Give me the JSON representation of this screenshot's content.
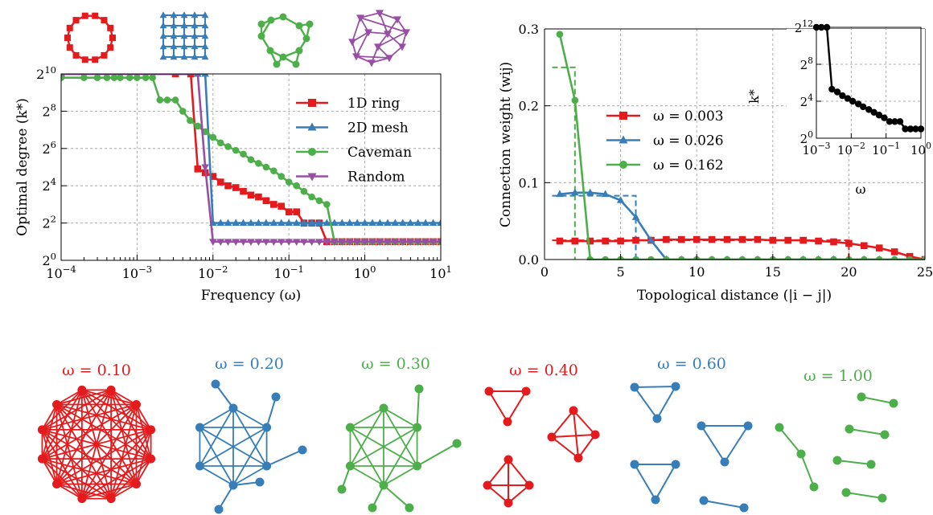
{
  "colors": {
    "red": "#e41a1c",
    "blue": "#377eb8",
    "green": "#4daf4a",
    "purple": "#984ea3",
    "black": "#000000"
  },
  "chart_data": [
    {
      "type": "line",
      "xlabel": "Frequency (ω)",
      "ylabel": "Optimal degree (k*)",
      "xscale": "log",
      "yscale": "log2",
      "xlim": [
        0.0001,
        10
      ],
      "ylim_exp": [
        0,
        10
      ],
      "x_ticks": [
        "10−4",
        "10−3",
        "10−2",
        "10−1",
        "100",
        "101"
      ],
      "y_ticks": [
        "20",
        "22",
        "24",
        "26",
        "28",
        "210"
      ],
      "legend": "upper right",
      "series": [
        {
          "name": "1D ring",
          "color": "red",
          "marker": "square",
          "x": [
            0.0001,
            0.0032,
            0.0051,
            0.0063,
            0.0079,
            0.01,
            0.0126,
            0.0158,
            0.02,
            0.0251,
            0.0316,
            0.0398,
            0.0501,
            0.0631,
            0.0794,
            0.1,
            0.126,
            0.158,
            0.2,
            0.251,
            0.316,
            0.398,
            0.501,
            0.631,
            0.794,
            1,
            1.26,
            1.58,
            2,
            2.51,
            3.16,
            3.98,
            5.01,
            6.31,
            7.94,
            10
          ],
          "y_exp": [
            10,
            10,
            10,
            4.9,
            4.7,
            4.5,
            4.2,
            4.0,
            3.9,
            3.7,
            3.5,
            3.4,
            3.2,
            3.0,
            2.9,
            2.6,
            2.6,
            2.0,
            2.0,
            2.0,
            1.0,
            1.0,
            1.0,
            1.0,
            1.0,
            1.0,
            1.0,
            1.0,
            1.0,
            1.0,
            1.0,
            1.0,
            1.0,
            1.0,
            1.0,
            1.0
          ]
        },
        {
          "name": "2D mesh",
          "color": "blue",
          "marker": "triangle-up",
          "x": [
            0.0001,
            0.0063,
            0.0079,
            0.01,
            0.0126,
            0.0158,
            0.02,
            0.0251,
            0.0316,
            0.0398,
            0.0501,
            0.0631,
            0.0794,
            0.1,
            0.126,
            0.158,
            0.2,
            0.251,
            0.316,
            0.398,
            0.501,
            0.631,
            0.794,
            1,
            1.26,
            1.58,
            2,
            2.51,
            3.16,
            3.98,
            5.01,
            6.31,
            7.94,
            10
          ],
          "y_exp": [
            10,
            10,
            10,
            2,
            2,
            2,
            2,
            2,
            2,
            2,
            2,
            2,
            2,
            2,
            2,
            2,
            2,
            2,
            2,
            2,
            2,
            2,
            2,
            2,
            2,
            2,
            2,
            2,
            2,
            2,
            2,
            2,
            2,
            2
          ]
        },
        {
          "name": "Caveman",
          "color": "green",
          "marker": "circle",
          "x": [
            0.0001,
            0.0002,
            0.0003,
            0.0004,
            0.0005,
            0.0006,
            0.0008,
            0.001,
            0.0013,
            0.0016,
            0.002,
            0.0025,
            0.0032,
            0.004,
            0.005,
            0.0063,
            0.0079,
            0.01,
            0.0126,
            0.0158,
            0.02,
            0.0251,
            0.0316,
            0.0398,
            0.0501,
            0.0631,
            0.0794,
            0.1,
            0.126,
            0.158,
            0.2,
            0.251,
            0.316,
            0.398,
            0.501,
            0.631,
            0.794,
            1,
            1.26,
            1.58,
            2,
            2.51,
            3.16,
            3.98,
            5.01,
            6.31,
            7.94,
            10
          ],
          "y_exp": [
            9.8,
            9.8,
            9.8,
            9.8,
            9.8,
            9.8,
            9.8,
            9.8,
            9.8,
            9.8,
            8.6,
            8.6,
            8.6,
            8.0,
            7.5,
            7.2,
            6.9,
            6.6,
            6.3,
            6.1,
            5.9,
            5.7,
            5.4,
            5.2,
            5.0,
            4.8,
            4.5,
            4.2,
            4.0,
            3.7,
            3.4,
            3.2,
            3.0,
            1.0,
            1.0,
            1.0,
            1.0,
            1.0,
            1.0,
            1.0,
            1.0,
            1.0,
            1.0,
            1.0,
            1.0,
            1.0,
            1.0,
            1.0
          ]
        },
        {
          "name": "Random",
          "color": "purple",
          "marker": "triangle-down",
          "x": [
            0.0001,
            0.0063,
            0.0079,
            0.01,
            0.0126,
            0.0158,
            0.02,
            0.0251,
            0.0316,
            0.0398,
            0.0501,
            0.0631,
            0.0794,
            0.1,
            0.126,
            0.158,
            0.2,
            0.251,
            0.316,
            0.398,
            0.501,
            0.631,
            0.794,
            1,
            1.26,
            1.58,
            2,
            2.51,
            3.16,
            3.98,
            5.01,
            6.31,
            7.94,
            10
          ],
          "y_exp": [
            10,
            10,
            5.0,
            1,
            1,
            1,
            1,
            1,
            1,
            1,
            1,
            1,
            1,
            1,
            1,
            1,
            1,
            1,
            1,
            1,
            1,
            1,
            1,
            1,
            1,
            1,
            1,
            1,
            1,
            1,
            1,
            1,
            1,
            1
          ]
        }
      ]
    },
    {
      "type": "line",
      "xlabel": "Topological distance (|i − j|)",
      "ylabel": "Connection weight (wij)",
      "xlim": [
        0,
        25
      ],
      "ylim": [
        0,
        0.3
      ],
      "x_ticks": [
        "0",
        "5",
        "10",
        "15",
        "20",
        "25"
      ],
      "y_ticks": [
        "0.0",
        "0.1",
        "0.2",
        "0.3"
      ],
      "legend": "center",
      "series": [
        {
          "name": "ω = 0.003",
          "color": "red",
          "marker": "square",
          "x": [
            1,
            2,
            3,
            4,
            5,
            6,
            7,
            8,
            9,
            10,
            11,
            12,
            13,
            14,
            15,
            16,
            17,
            18,
            19,
            20,
            21,
            22,
            23,
            24,
            25
          ],
          "y": [
            0.024,
            0.024,
            0.024,
            0.024,
            0.024,
            0.025,
            0.025,
            0.026,
            0.026,
            0.026,
            0.026,
            0.026,
            0.026,
            0.026,
            0.025,
            0.025,
            0.025,
            0.024,
            0.023,
            0.021,
            0.018,
            0.015,
            0.01,
            0.004,
            0.0
          ]
        },
        {
          "name": "ω = 0.026",
          "color": "blue",
          "marker": "triangle-up",
          "x": [
            1,
            2,
            3,
            4,
            5,
            6,
            7,
            8,
            9,
            10,
            11,
            12,
            13,
            14,
            15,
            16,
            17,
            18,
            19,
            20,
            21,
            22,
            23,
            24,
            25
          ],
          "y": [
            0.085,
            0.087,
            0.087,
            0.085,
            0.077,
            0.055,
            0.025,
            0,
            0,
            0,
            0,
            0,
            0,
            0,
            0,
            0,
            0,
            0,
            0,
            0,
            0,
            0,
            0,
            0,
            0
          ]
        },
        {
          "name": "ω = 0.162",
          "color": "green",
          "marker": "circle",
          "x": [
            1,
            2,
            3,
            4,
            5,
            6,
            7,
            8,
            9,
            10,
            11,
            12,
            13,
            14,
            15,
            16,
            17,
            18,
            19,
            20,
            21,
            22,
            23,
            24,
            25
          ],
          "y": [
            0.293,
            0.207,
            0,
            0,
            0,
            0,
            0,
            0,
            0,
            0,
            0,
            0,
            0,
            0,
            0,
            0,
            0,
            0,
            0,
            0,
            0,
            0,
            0,
            0,
            0
          ]
        }
      ],
      "dashed_series": [
        {
          "color": "red",
          "x": [
            0.5,
            20,
            20
          ],
          "y": [
            0.025,
            0.025,
            0
          ]
        },
        {
          "color": "blue",
          "x": [
            0.5,
            6,
            6
          ],
          "y": [
            0.083,
            0.083,
            0
          ]
        },
        {
          "color": "green",
          "x": [
            0.5,
            2,
            2
          ],
          "y": [
            0.25,
            0.25,
            0
          ]
        }
      ]
    },
    {
      "type": "line",
      "xlabel": "ω",
      "ylabel": "k*",
      "xscale": "log",
      "yscale": "log2",
      "xlim": [
        0.001,
        1
      ],
      "ylim_exp": [
        0,
        12
      ],
      "x_ticks": [
        "10−3",
        "10−2",
        "10−1",
        "100"
      ],
      "y_ticks": [
        "20",
        "24",
        "28",
        "212"
      ],
      "series": [
        {
          "name": "",
          "color": "black",
          "marker": "circle",
          "x": [
            0.001,
            0.0014,
            0.002,
            0.0028,
            0.004,
            0.0056,
            0.0079,
            0.011,
            0.016,
            0.022,
            0.032,
            0.045,
            0.063,
            0.089,
            0.126,
            0.178,
            0.251,
            0.355,
            0.501,
            0.708,
            1.0
          ],
          "y_exp": [
            12,
            12,
            12,
            5.3,
            5.0,
            4.6,
            4.3,
            4.0,
            3.7,
            3.4,
            3.1,
            2.8,
            2.5,
            2.2,
            1.8,
            1.8,
            1.8,
            1.0,
            1.0,
            1.0,
            1.0
          ]
        }
      ]
    }
  ],
  "top_icons": [
    {
      "color": "red",
      "kind": "ring"
    },
    {
      "color": "blue",
      "kind": "mesh"
    },
    {
      "color": "green",
      "kind": "caveman"
    },
    {
      "color": "purple",
      "kind": "random"
    }
  ],
  "networks": [
    {
      "label": "ω = 0.10",
      "color": "red"
    },
    {
      "label": "ω = 0.20",
      "color": "blue"
    },
    {
      "label": "ω = 0.30",
      "color": "green"
    },
    {
      "label": "ω = 0.40",
      "color": "red"
    },
    {
      "label": "ω = 0.60",
      "color": "blue"
    },
    {
      "label": "ω = 1.00",
      "color": "green"
    }
  ]
}
